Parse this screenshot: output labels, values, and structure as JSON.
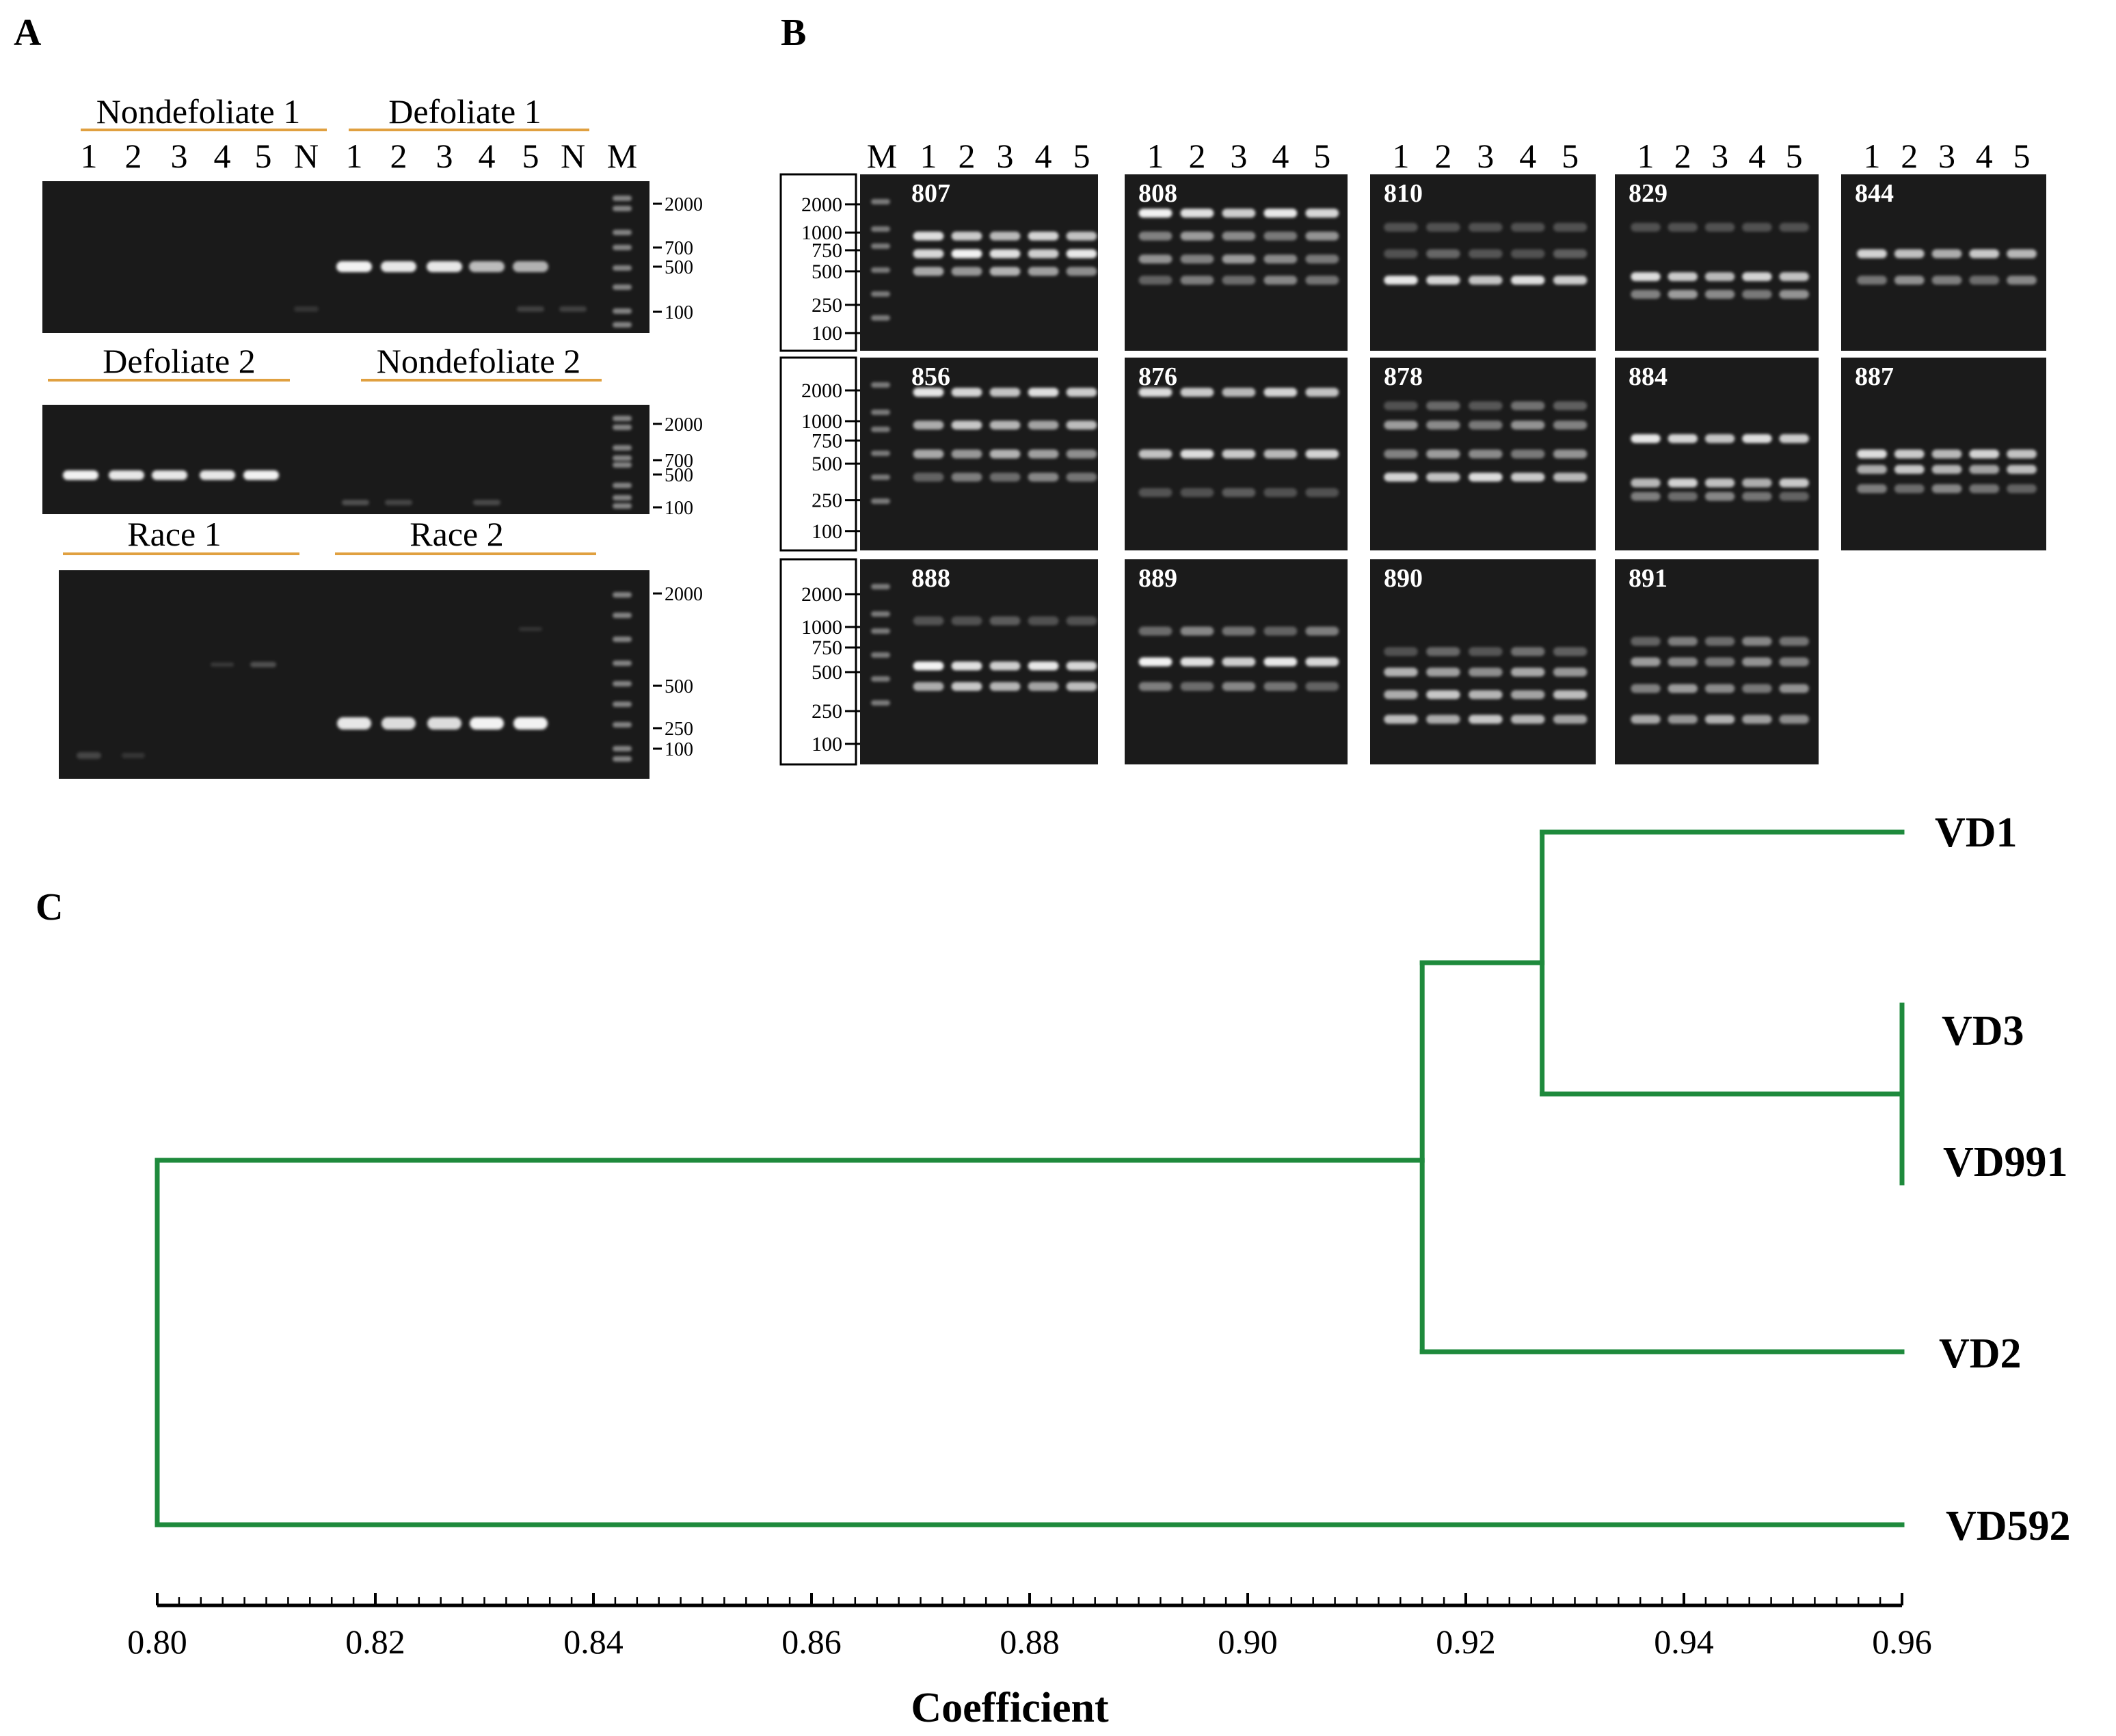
{
  "panel_a": {
    "label": "A",
    "gel1": {
      "groups": [
        "Nondefoliate 1",
        "Defoliate 1"
      ],
      "lanes": [
        "1",
        "2",
        "3",
        "4",
        "5",
        "N",
        "1",
        "2",
        "3",
        "4",
        "5",
        "N",
        "M"
      ],
      "markers": [
        "2000",
        "700",
        "500",
        "100"
      ]
    },
    "gel2": {
      "groups": [
        "Defoliate 2",
        "Nondefoliate 2"
      ],
      "markers": [
        "2000",
        "700",
        "500",
        "100"
      ]
    },
    "gel3": {
      "groups": [
        "Race 1",
        "Race 2"
      ],
      "markers": [
        "2000",
        "500",
        "250",
        "100"
      ]
    }
  },
  "panel_b": {
    "label": "B",
    "marker_lane": "M",
    "lanes": [
      "1",
      "2",
      "3",
      "4",
      "5"
    ],
    "ladder_row1": [
      "2000",
      "1000",
      "750",
      "500",
      "250",
      "100"
    ],
    "ladder_row2": [
      "2000",
      "1000",
      "750",
      "500",
      "250",
      "100"
    ],
    "ladder_row3": [
      "2000",
      "1000",
      "750",
      "500",
      "250",
      "100"
    ],
    "gels": [
      "807",
      "808",
      "810",
      "829",
      "844",
      "856",
      "876",
      "878",
      "884",
      "887",
      "888",
      "889",
      "890",
      "891"
    ]
  },
  "panel_c": {
    "label": "C",
    "chart_data": {
      "type": "dendrogram",
      "xlabel": "Coefficient",
      "xlim": [
        0.8,
        0.96
      ],
      "ticks": [
        "0.80",
        "0.82",
        "0.84",
        "0.86",
        "0.88",
        "0.90",
        "0.92",
        "0.94",
        "0.96"
      ],
      "leaves": [
        "VD1",
        "VD3",
        "VD991",
        "VD2",
        "VD592"
      ],
      "merges": [
        {
          "items": [
            "VD3",
            "VD991"
          ],
          "height": 0.96
        },
        {
          "items": [
            "VD1",
            "VD3+VD991"
          ],
          "height": 0.927
        },
        {
          "items": [
            "VD1+VD3+VD991",
            "VD2"
          ],
          "height": 0.916
        },
        {
          "items": [
            "VD1+VD2+VD3+VD991",
            "VD592"
          ],
          "height": 0.8
        }
      ],
      "line_color": "#1e8a3c"
    }
  },
  "colors": {
    "group_underline": "#e0a040",
    "gel_background": "#1a1a1a",
    "band": "#f2f2f2"
  }
}
